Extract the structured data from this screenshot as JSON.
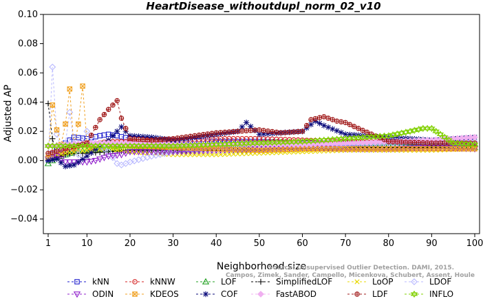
{
  "chart_data": {
    "type": "line",
    "title": "HeartDisease_withoutdupl_norm_02_v10",
    "xlabel": "Neighborhood size",
    "ylabel": "Adjusted AP",
    "xlim": [
      1,
      100
    ],
    "ylim": [
      -0.05,
      0.1
    ],
    "xticks": [
      1,
      10,
      20,
      30,
      40,
      50,
      60,
      70,
      80,
      90,
      100
    ],
    "yticks": [
      -0.04,
      -0.02,
      0.0,
      0.02,
      0.04,
      0.06,
      0.08,
      0.1
    ],
    "ytick_labels": [
      "−0.04",
      "−0.02",
      "0.00",
      "0.02",
      "0.04",
      "0.06",
      "0.08",
      "0.10"
    ],
    "grid": false,
    "legend_position": "bottom",
    "watermark": [
      "Source: Unsupervised Outlier Detection. DAMI, 2015.",
      "Campos, Zimek, Sander, Campello, Micenkova, Schubert, Assent, Houle"
    ],
    "series": [
      {
        "name": "kNN",
        "color": "#1a1acc",
        "marker": "square",
        "k": [
          1,
          3,
          5,
          7,
          10,
          13,
          15,
          17,
          20,
          25,
          30,
          40,
          50,
          60,
          70,
          80,
          90,
          100
        ],
        "values": [
          0.001,
          0.008,
          0.012,
          0.016,
          0.015,
          0.017,
          0.018,
          0.017,
          0.015,
          0.014,
          0.014,
          0.013,
          0.013,
          0.012,
          0.012,
          0.011,
          0.01,
          0.01
        ]
      },
      {
        "name": "kNNW",
        "color": "#d42020",
        "marker": "circle",
        "k": [
          1,
          3,
          5,
          7,
          10,
          15,
          20,
          30,
          40,
          50,
          60,
          70,
          80,
          90,
          100
        ],
        "values": [
          0.002,
          0.004,
          0.006,
          0.009,
          0.011,
          0.013,
          0.013,
          0.014,
          0.015,
          0.015,
          0.014,
          0.013,
          0.013,
          0.012,
          0.012
        ]
      },
      {
        "name": "LOF",
        "color": "#20a020",
        "marker": "triangle-up",
        "k": [
          1,
          3,
          5,
          7,
          10,
          15,
          20,
          30,
          40,
          50,
          60,
          70,
          80,
          90,
          100
        ],
        "values": [
          -0.002,
          0.002,
          0.004,
          0.006,
          0.007,
          0.008,
          0.009,
          0.01,
          0.011,
          0.011,
          0.011,
          0.011,
          0.011,
          0.01,
          0.009
        ]
      },
      {
        "name": "SimplifiedLOF",
        "color": "#000000",
        "marker": "plus",
        "k": [
          1,
          2,
          3,
          5,
          7,
          10,
          15,
          20,
          30,
          40,
          50,
          60,
          70,
          80,
          90,
          100
        ],
        "values": [
          0.039,
          0.015,
          0.002,
          0.004,
          0.005,
          0.005,
          0.006,
          0.007,
          0.007,
          0.007,
          0.007,
          0.008,
          0.009,
          0.009,
          0.009,
          0.01
        ]
      },
      {
        "name": "LoOP",
        "color": "#e8d800",
        "marker": "x",
        "k": [
          1,
          3,
          5,
          10,
          15,
          20,
          30,
          40,
          50,
          60,
          70,
          80,
          90,
          100
        ],
        "values": [
          0.003,
          0.004,
          0.005,
          0.007,
          0.008,
          0.006,
          0.004,
          0.004,
          0.005,
          0.006,
          0.007,
          0.007,
          0.007,
          0.008
        ]
      },
      {
        "name": "LDOF",
        "color": "#b8b8ff",
        "marker": "diamond",
        "k": [
          1,
          2,
          3,
          4,
          5,
          6,
          7,
          8,
          10,
          12,
          15,
          17,
          18,
          20,
          25,
          30,
          40,
          50,
          60,
          70,
          80,
          90,
          100
        ],
        "values": [
          0.001,
          0.064,
          0.018,
          0.008,
          0.012,
          0.033,
          0.012,
          0.004,
          0.02,
          0.012,
          0.006,
          -0.002,
          -0.003,
          -0.001,
          0.003,
          0.006,
          0.008,
          0.009,
          0.01,
          0.011,
          0.012,
          0.013,
          0.013
        ]
      },
      {
        "name": "ODIN",
        "color": "#9020cc",
        "marker": "triangle-down",
        "k": [
          1,
          3,
          5,
          8,
          10,
          12,
          15,
          18,
          20,
          25,
          30,
          40,
          50,
          60,
          70,
          80,
          90,
          100
        ],
        "values": [
          0.001,
          0.003,
          -0.001,
          -0.001,
          -0.001,
          0.0,
          0.003,
          0.004,
          0.006,
          0.006,
          0.006,
          0.007,
          0.008,
          0.009,
          0.008,
          0.008,
          0.009,
          0.008
        ]
      },
      {
        "name": "KDEOS",
        "color": "#f0a020",
        "marker": "square-x",
        "k": [
          1,
          2,
          3,
          4,
          5,
          6,
          7,
          8,
          9,
          10,
          11,
          12,
          14,
          16,
          20,
          30,
          40,
          50,
          60,
          70,
          80,
          90,
          100
        ],
        "values": [
          0.002,
          0.038,
          0.021,
          0.011,
          0.025,
          0.049,
          0.008,
          0.025,
          0.051,
          0.012,
          0.009,
          0.011,
          0.012,
          0.011,
          0.01,
          0.009,
          0.008,
          0.007,
          0.008,
          0.008,
          0.008,
          0.008,
          0.008
        ]
      },
      {
        "name": "COF",
        "color": "#0a0a7a",
        "marker": "asterisk",
        "k": [
          1,
          3,
          5,
          7,
          10,
          13,
          15,
          18,
          20,
          25,
          30,
          35,
          40,
          45,
          47,
          50,
          55,
          60,
          63,
          65,
          70,
          75,
          80,
          90,
          100
        ],
        "values": [
          0.0,
          0.001,
          -0.004,
          -0.003,
          0.003,
          0.01,
          0.014,
          0.023,
          0.017,
          0.016,
          0.014,
          0.016,
          0.018,
          0.02,
          0.026,
          0.018,
          0.019,
          0.02,
          0.027,
          0.024,
          0.018,
          0.017,
          0.016,
          0.014,
          0.016
        ]
      },
      {
        "name": "FastABOD",
        "color": "#f0b0f0",
        "marker": "diamond-filled",
        "k": [
          1,
          10,
          20,
          30,
          40,
          50,
          60,
          70,
          80,
          90,
          100
        ],
        "values": [
          0.01,
          0.012,
          0.012,
          0.011,
          0.011,
          0.011,
          0.011,
          0.012,
          0.013,
          0.014,
          0.016
        ]
      },
      {
        "name": "LDF",
        "color": "#a01818",
        "marker": "circle-plus",
        "k": [
          1,
          5,
          10,
          13,
          15,
          17,
          18,
          20,
          25,
          30,
          40,
          45,
          50,
          55,
          60,
          62,
          65,
          68,
          70,
          73,
          80,
          90,
          100
        ],
        "values": [
          0.005,
          0.008,
          0.012,
          0.028,
          0.035,
          0.041,
          0.029,
          0.015,
          0.014,
          0.015,
          0.019,
          0.02,
          0.021,
          0.019,
          0.02,
          0.028,
          0.03,
          0.027,
          0.026,
          0.022,
          0.013,
          0.012,
          0.012
        ]
      },
      {
        "name": "INFLO",
        "color": "#80d000",
        "marker": "star-of-david",
        "k": [
          1,
          5,
          10,
          20,
          30,
          40,
          50,
          60,
          70,
          80,
          85,
          88,
          90,
          95,
          100
        ],
        "values": [
          0.01,
          0.01,
          0.01,
          0.01,
          0.01,
          0.011,
          0.012,
          0.013,
          0.015,
          0.017,
          0.02,
          0.022,
          0.022,
          0.012,
          0.011
        ]
      }
    ]
  }
}
